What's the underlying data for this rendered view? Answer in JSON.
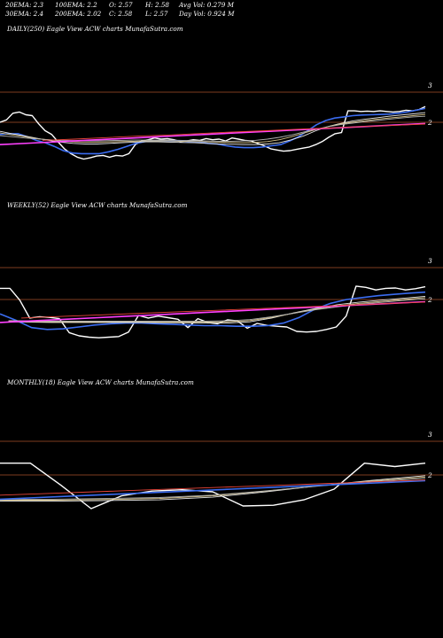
{
  "stats": {
    "ema20": "20EMA: 2.3",
    "ema100": "100EMA: 2.2",
    "open": "O: 2.57",
    "high": "H: 2.58",
    "avgvol": "Avg Vol: 0.279  M",
    "ema30": "30EMA: 2.4",
    "ema200": "200EMA: 2.02",
    "close": "C: 2.58",
    "low": "L: 2.57",
    "dayvol": "Day Vol: 0.924  M"
  },
  "chart_data": [
    {
      "type": "line",
      "title": "DAILY(250) Eagle   View  ACW charts MunafaSutra.com",
      "ticks": [
        {
          "label": "3",
          "value": 3
        },
        {
          "label": "2",
          "value": 2
        }
      ],
      "ylim": [
        0.5,
        3.2
      ],
      "series": [
        {
          "color": "#ffffff",
          "values": [
            2.0,
            2.08,
            2.3,
            2.34,
            2.25,
            2.22,
            1.95,
            1.72,
            1.6,
            1.35,
            1.12,
            0.96,
            0.84,
            0.78,
            0.82,
            0.88,
            0.9,
            0.84,
            0.9,
            0.88,
            0.96,
            1.26,
            1.38,
            1.42,
            1.48,
            1.44,
            1.46,
            1.42,
            1.36,
            1.38,
            1.42,
            1.4,
            1.46,
            1.42,
            1.44,
            1.38,
            1.48,
            1.44,
            1.4,
            1.38,
            1.3,
            1.22,
            1.12,
            1.08,
            1.04,
            1.06,
            1.1,
            1.14,
            1.18,
            1.26,
            1.36,
            1.5,
            1.62,
            1.66,
            2.38,
            2.38,
            2.36,
            2.37,
            2.36,
            2.38,
            2.36,
            2.34,
            2.36,
            2.4,
            2.38,
            2.42,
            2.52
          ]
        },
        {
          "color": "#3a6cf0",
          "values": [
            1.6,
            1.62,
            1.62,
            1.52,
            1.4,
            1.32,
            1.2,
            1.06,
            0.98,
            0.96,
            0.96,
            0.96,
            1.02,
            1.1,
            1.2,
            1.3,
            1.36,
            1.38,
            1.38,
            1.38,
            1.38,
            1.36,
            1.34,
            1.3,
            1.28,
            1.22,
            1.18,
            1.16,
            1.16,
            1.18,
            1.22,
            1.26,
            1.38,
            1.52,
            1.72,
            1.92,
            2.06,
            2.14,
            2.18,
            2.22,
            2.24,
            2.25,
            2.26,
            2.27,
            2.3,
            2.34,
            2.4,
            2.46
          ]
        },
        {
          "color": "#e6e6e6",
          "values": [
            1.7,
            1.62,
            1.55,
            1.47,
            1.4,
            1.34,
            1.3,
            1.28,
            1.28,
            1.3,
            1.32,
            1.34,
            1.35,
            1.35,
            1.34,
            1.33,
            1.32,
            1.3,
            1.28,
            1.27,
            1.26,
            1.26,
            1.28,
            1.32,
            1.42,
            1.55,
            1.72,
            1.86,
            1.96,
            2.04,
            2.1,
            2.15,
            2.2,
            2.24,
            2.28,
            2.32
          ]
        },
        {
          "color": "#d8c48a",
          "values": [
            1.65,
            1.58,
            1.52,
            1.46,
            1.42,
            1.38,
            1.35,
            1.34,
            1.34,
            1.35,
            1.36,
            1.37,
            1.38,
            1.38,
            1.38,
            1.37,
            1.36,
            1.35,
            1.34,
            1.33,
            1.32,
            1.33,
            1.36,
            1.42,
            1.52,
            1.64,
            1.76,
            1.86,
            1.94,
            2.0,
            2.05,
            2.1,
            2.14,
            2.18,
            2.22,
            2.26
          ]
        },
        {
          "color": "#b0b0b0",
          "values": [
            1.56,
            1.52,
            1.48,
            1.45,
            1.42,
            1.4,
            1.39,
            1.38,
            1.38,
            1.39,
            1.4,
            1.41,
            1.41,
            1.41,
            1.41,
            1.4,
            1.39,
            1.38,
            1.37,
            1.37,
            1.38,
            1.4,
            1.44,
            1.5,
            1.58,
            1.68,
            1.77,
            1.85,
            1.92,
            1.97,
            2.02,
            2.06,
            2.1,
            2.14,
            2.18,
            2.2
          ]
        },
        {
          "color": "#ff40ff",
          "values": [
            1.26,
            1.31,
            1.36,
            1.41,
            1.46,
            1.51,
            1.56,
            1.61,
            1.66,
            1.71,
            1.76,
            1.81,
            1.86,
            1.91,
            1.96
          ]
        },
        {
          "color": "#e8453a",
          "values": [
            1.4,
            1.44,
            1.49,
            1.54,
            1.58,
            1.63,
            1.68,
            1.72,
            1.77,
            1.81,
            1.86,
            1.9,
            1.94
          ]
        }
      ]
    },
    {
      "type": "line",
      "title": "WEEKLY(52) Eagle   View  ACW charts MunafaSutra.com",
      "ticks": [
        {
          "label": "3",
          "value": 3
        },
        {
          "label": "2",
          "value": 2
        }
      ],
      "ylim": [
        0.5,
        3.2
      ],
      "series": [
        {
          "color": "#ffffff",
          "values": [
            2.35,
            2.35,
            1.98,
            1.42,
            1.46,
            1.44,
            1.4,
            0.96,
            0.86,
            0.82,
            0.8,
            0.82,
            0.84,
            0.98,
            1.5,
            1.42,
            1.48,
            1.43,
            1.38,
            1.12,
            1.4,
            1.28,
            1.24,
            1.36,
            1.33,
            1.1,
            1.25,
            1.19,
            1.16,
            1.14,
            1.0,
            0.98,
            1.0,
            1.06,
            1.14,
            1.48,
            2.42,
            2.38,
            2.3,
            2.35,
            2.36,
            2.3,
            2.34,
            2.4
          ]
        },
        {
          "color": "#3a6cf0",
          "values": [
            1.55,
            1.35,
            1.12,
            1.06,
            1.08,
            1.14,
            1.2,
            1.24,
            1.26,
            1.26,
            1.24,
            1.22,
            1.2,
            1.18,
            1.18,
            1.16,
            1.16,
            1.18,
            1.26,
            1.44,
            1.7,
            1.88,
            2.0,
            2.06,
            2.12,
            2.16,
            2.2,
            2.23
          ]
        },
        {
          "color": "#e6e6e6",
          "values": [
            1.3,
            1.29,
            1.28,
            1.28,
            1.28,
            1.28,
            1.28,
            1.27,
            1.27,
            1.26,
            1.26,
            1.3,
            1.42,
            1.58,
            1.72,
            1.84,
            1.92,
            1.98,
            2.04,
            2.1
          ]
        },
        {
          "color": "#d8c48a",
          "values": [
            1.32,
            1.31,
            1.3,
            1.3,
            1.3,
            1.3,
            1.3,
            1.29,
            1.29,
            1.29,
            1.3,
            1.34,
            1.44,
            1.57,
            1.7,
            1.8,
            1.88,
            1.94,
            2.0,
            2.06
          ]
        },
        {
          "color": "#b0b0b0",
          "values": [
            1.34,
            1.33,
            1.32,
            1.32,
            1.32,
            1.32,
            1.32,
            1.32,
            1.32,
            1.32,
            1.33,
            1.37,
            1.46,
            1.57,
            1.68,
            1.77,
            1.85,
            1.91,
            1.97,
            2.02
          ]
        },
        {
          "color": "#ff40ff",
          "values": [
            1.28,
            1.33,
            1.38,
            1.43,
            1.48,
            1.53,
            1.58,
            1.63,
            1.68,
            1.73,
            1.78,
            1.83,
            1.88,
            1.93
          ]
        },
        {
          "color": "#e8453a",
          "values": [
            1.42,
            1.47,
            1.52,
            1.57,
            1.62,
            1.67,
            1.72,
            1.77,
            1.82,
            1.87,
            1.92
          ]
        }
      ]
    },
    {
      "type": "line",
      "title": "MONTHLY(18) Eagle   View  ACW charts MunafaSutra.com",
      "ticks": [
        {
          "label": "3",
          "value": 3
        },
        {
          "label": "2",
          "value": 2
        }
      ],
      "ylim": [
        0.5,
        3.2
      ],
      "series": [
        {
          "color": "#ffffff",
          "values": [
            2.35,
            2.35,
            1.7,
            1.0,
            1.38,
            1.52,
            1.56,
            1.5,
            1.08,
            1.1,
            1.26,
            1.58,
            2.35,
            2.25,
            2.35
          ]
        },
        {
          "color": "#e6e6e6",
          "values": [
            1.22,
            1.22,
            1.24,
            1.26,
            1.34,
            1.5,
            1.68,
            1.84,
            1.98
          ]
        },
        {
          "color": "#d8c48a",
          "values": [
            1.25,
            1.25,
            1.27,
            1.3,
            1.38,
            1.52,
            1.68,
            1.82,
            1.94
          ]
        },
        {
          "color": "#b0b0b0",
          "values": [
            1.28,
            1.28,
            1.3,
            1.33,
            1.4,
            1.53,
            1.67,
            1.8,
            1.9
          ]
        },
        {
          "color": "#3a6cf0",
          "values": [
            1.28,
            1.33,
            1.38,
            1.43,
            1.48,
            1.53,
            1.58,
            1.63,
            1.68,
            1.73,
            1.78,
            1.83
          ]
        },
        {
          "color": "#e8453a",
          "values": [
            1.4,
            1.45,
            1.5,
            1.55,
            1.6,
            1.65,
            1.7,
            1.75,
            1.8,
            1.85
          ]
        }
      ]
    }
  ]
}
